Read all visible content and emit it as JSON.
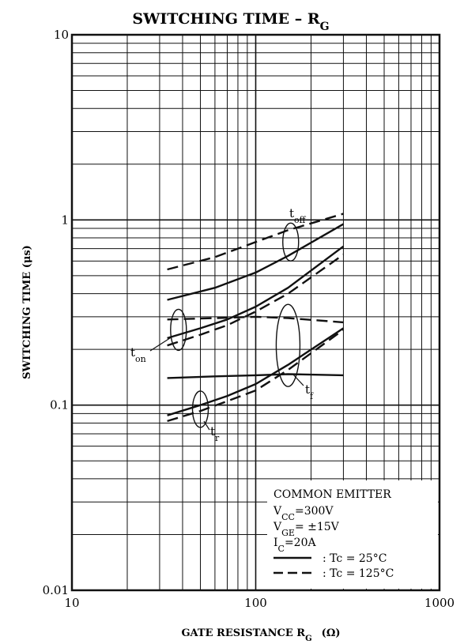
{
  "chart_data": {
    "type": "line",
    "title": "SWITCHING TIME – R",
    "title_sub": "G",
    "xlabel": "GATE RESISTANCE  R",
    "xlabel_sub": "G",
    "xlabel_unit": "(Ω)",
    "ylabel": "SWITCHING TIME  (μs)",
    "x_scale": "log",
    "y_scale": "log",
    "xlim": [
      10,
      1000
    ],
    "ylim": [
      0.01,
      10
    ],
    "x_ticks": [
      "10",
      "100",
      "1000"
    ],
    "y_ticks": [
      "0.01",
      "0.1",
      "1",
      "10"
    ],
    "grid": true,
    "curve_labels": {
      "toff": {
        "main": "t",
        "sub": "off"
      },
      "ton": {
        "main": "t",
        "sub": "on"
      },
      "tf": {
        "main": "t",
        "sub": "f"
      },
      "tr": {
        "main": "t",
        "sub": "r"
      }
    },
    "legend": {
      "title": "COMMON EMITTER",
      "conditions": [
        {
          "main": "V",
          "sub": "CC",
          "value": "=300V"
        },
        {
          "main": "V",
          "sub": "GE",
          "value": "= ±15V"
        },
        {
          "main": "I",
          "sub": "C",
          "value": "=20A"
        }
      ],
      "solid_label": ": Tc = 25°C",
      "dashed_label": ": Tc = 125°C"
    },
    "series": [
      {
        "curve": "toff",
        "temp": "25°C",
        "style": "solid",
        "x": [
          33,
          60,
          100,
          150,
          300
        ],
        "y": [
          0.37,
          0.43,
          0.52,
          0.64,
          0.95
        ]
      },
      {
        "curve": "toff",
        "temp": "125°C",
        "style": "dashed",
        "x": [
          33,
          60,
          100,
          150,
          300
        ],
        "y": [
          0.54,
          0.63,
          0.76,
          0.88,
          1.08
        ]
      },
      {
        "curve": "ton",
        "temp": "25°C",
        "style": "solid",
        "x": [
          33,
          50,
          70,
          100,
          150,
          300
        ],
        "y": [
          0.23,
          0.26,
          0.29,
          0.34,
          0.43,
          0.72
        ]
      },
      {
        "curve": "ton",
        "temp": "125°C",
        "style": "dashed",
        "x": [
          33,
          50,
          70,
          100,
          150,
          300
        ],
        "y": [
          0.21,
          0.24,
          0.27,
          0.32,
          0.4,
          0.65
        ]
      },
      {
        "curve": "tf",
        "temp": "25°C",
        "style": "solid",
        "x": [
          33,
          60,
          100,
          150,
          300
        ],
        "y": [
          0.14,
          0.143,
          0.145,
          0.147,
          0.145
        ]
      },
      {
        "curve": "tf",
        "temp": "125°C",
        "style": "dashed",
        "x": [
          33,
          60,
          100,
          150,
          300
        ],
        "y": [
          0.29,
          0.295,
          0.3,
          0.295,
          0.28
        ]
      },
      {
        "curve": "tr",
        "temp": "25°C",
        "style": "solid",
        "x": [
          33,
          50,
          70,
          100,
          150,
          300
        ],
        "y": [
          0.088,
          0.1,
          0.112,
          0.13,
          0.165,
          0.26
        ]
      },
      {
        "curve": "tr",
        "temp": "125°C",
        "style": "dashed",
        "x": [
          33,
          50,
          70,
          100,
          150,
          300
        ],
        "y": [
          0.082,
          0.093,
          0.105,
          0.12,
          0.155,
          0.255
        ]
      }
    ]
  }
}
